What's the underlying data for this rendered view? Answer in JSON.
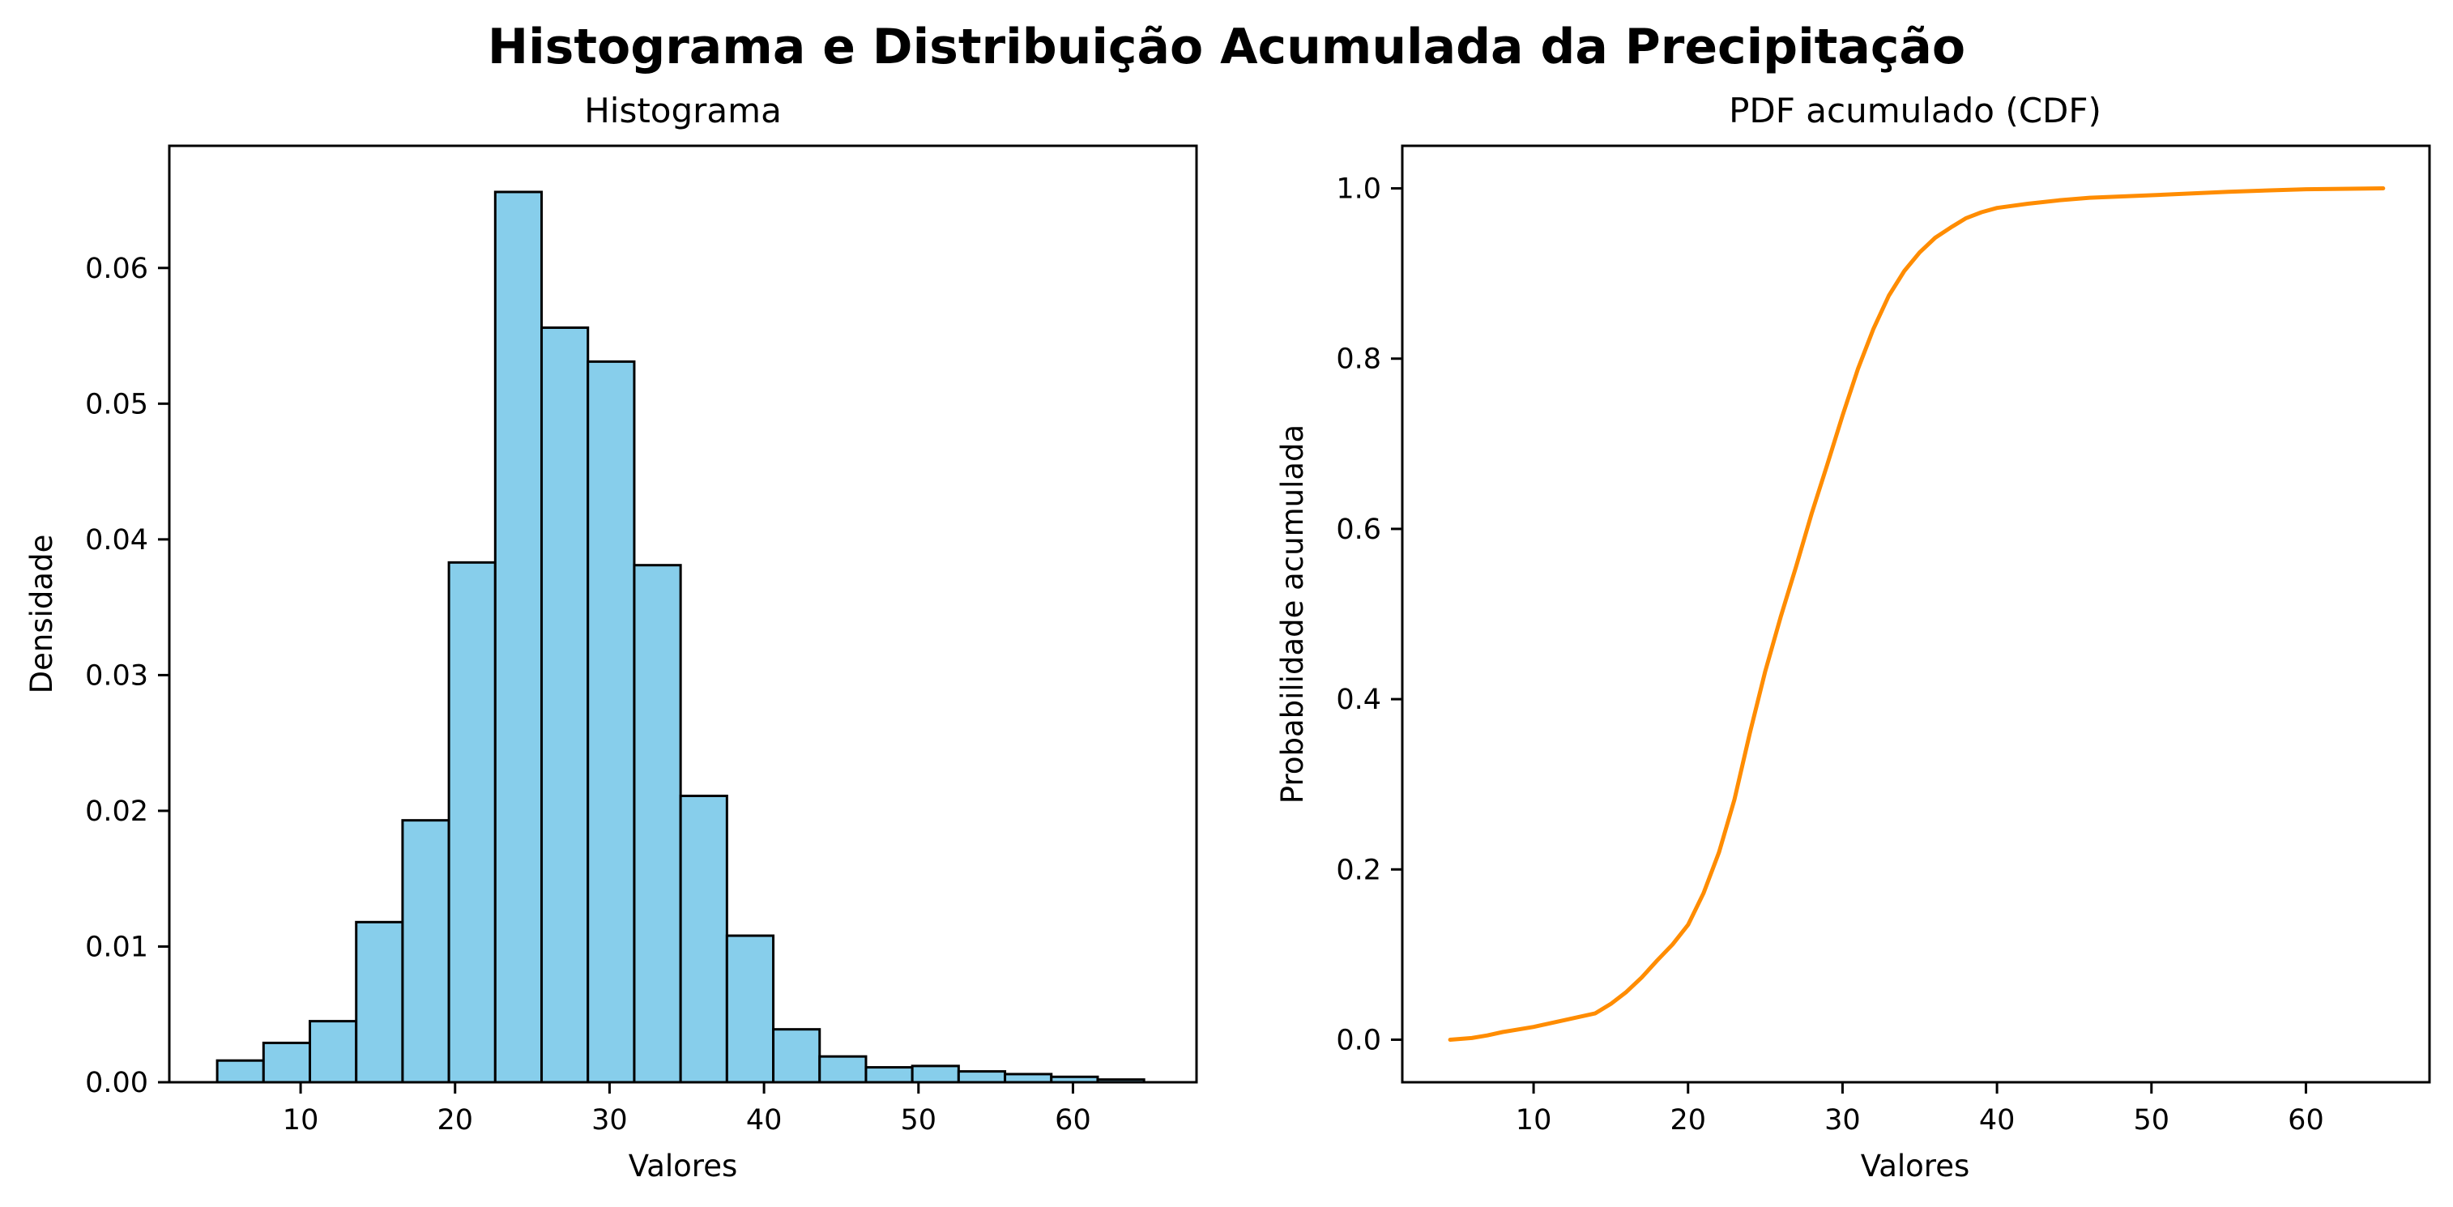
{
  "figure": {
    "title": "Histograma e Distribuição Acumulada da Precipitação"
  },
  "chart_data": [
    {
      "type": "bar",
      "title": "Histograma",
      "xlabel": "Valores",
      "ylabel": "Densidade",
      "xlim": [
        1.5,
        68
      ],
      "ylim": [
        0,
        0.069
      ],
      "xticks": [
        "10",
        "20",
        "30",
        "40",
        "50",
        "60"
      ],
      "yticks": [
        "0.00",
        "0.01",
        "0.02",
        "0.03",
        "0.04",
        "0.05",
        "0.06"
      ],
      "bin_edges": [
        4.6,
        7.6,
        10.6,
        13.6,
        16.6,
        19.6,
        22.6,
        25.6,
        28.6,
        31.6,
        34.6,
        37.6,
        40.6,
        43.6,
        46.6,
        49.6,
        52.6,
        55.6,
        58.6,
        61.6,
        64.6
      ],
      "values": [
        0.0016,
        0.0029,
        0.0045,
        0.0118,
        0.0193,
        0.0383,
        0.0656,
        0.0556,
        0.0531,
        0.0381,
        0.0211,
        0.0108,
        0.0039,
        0.0019,
        0.0011,
        0.0012,
        0.0008,
        0.0006,
        0.0004,
        0.0002
      ],
      "colors": {
        "fill": "#87ceeb",
        "edge": "#000000"
      },
      "grid": false
    },
    {
      "type": "line",
      "title": "PDF acumulado (CDF)",
      "xlabel": "Valores",
      "ylabel": "Probabilidade acumulada",
      "xlim": [
        1.5,
        68
      ],
      "ylim": [
        -0.05,
        1.05
      ],
      "xticks": [
        "10",
        "20",
        "30",
        "40",
        "50",
        "60"
      ],
      "yticks": [
        "0.0",
        "0.2",
        "0.4",
        "0.6",
        "0.8",
        "1.0"
      ],
      "series": [
        {
          "color": "#ff8c00",
          "x": [
            4.6,
            6,
            7,
            8,
            10,
            12,
            14,
            15,
            16,
            17,
            18,
            19,
            20,
            21,
            22,
            23,
            24,
            25,
            26,
            27,
            28,
            29,
            30,
            31,
            32,
            33,
            34,
            35,
            36,
            37,
            38,
            39,
            40,
            42,
            44,
            46,
            50,
            55,
            60,
            65
          ],
          "y": [
            0.0,
            0.002,
            0.005,
            0.009,
            0.015,
            0.023,
            0.031,
            0.042,
            0.056,
            0.073,
            0.093,
            0.112,
            0.135,
            0.172,
            0.22,
            0.282,
            0.36,
            0.433,
            0.497,
            0.556,
            0.618,
            0.675,
            0.733,
            0.788,
            0.835,
            0.874,
            0.903,
            0.925,
            0.942,
            0.954,
            0.965,
            0.972,
            0.977,
            0.982,
            0.986,
            0.989,
            0.992,
            0.996,
            0.999,
            1.0
          ]
        }
      ],
      "grid": false
    }
  ]
}
